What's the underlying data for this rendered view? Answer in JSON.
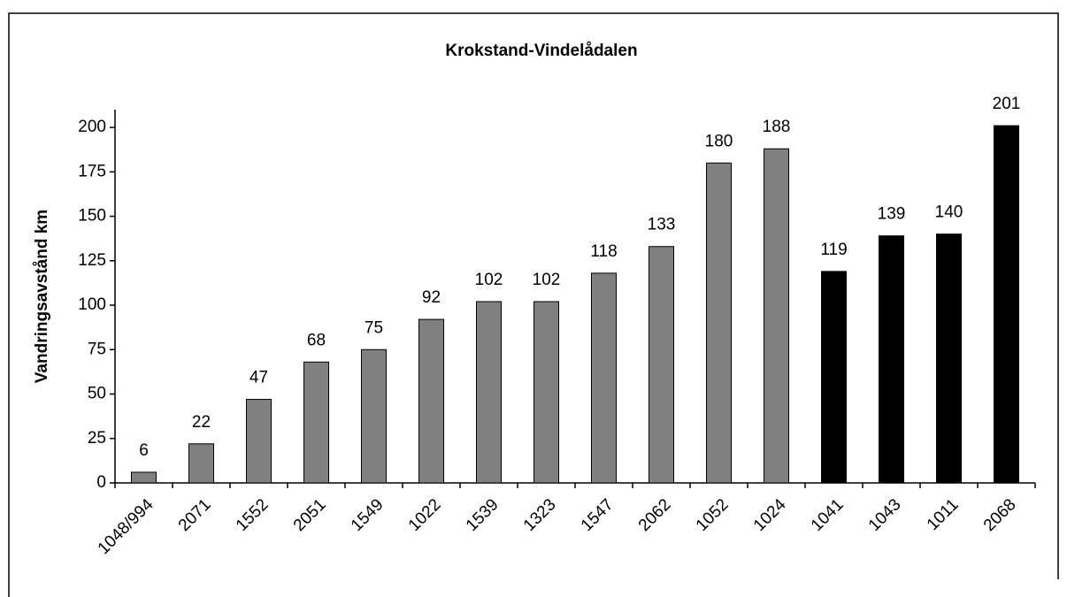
{
  "chart_data": {
    "type": "bar",
    "title": "Krokstand-Vindelådalen",
    "y_label": "Vandringsavstånd km",
    "categories": [
      "1048/994",
      "2071",
      "1552",
      "2051",
      "1549",
      "1022",
      "1539",
      "1323",
      "1547",
      "2062",
      "1052",
      "1024",
      "1041",
      "1043",
      "1011",
      "2068"
    ],
    "values": [
      6,
      22,
      47,
      68,
      75,
      92,
      102,
      102,
      118,
      133,
      180,
      188,
      119,
      139,
      140,
      201
    ],
    "colors": [
      "#808080",
      "#808080",
      "#808080",
      "#808080",
      "#808080",
      "#808080",
      "#808080",
      "#808080",
      "#808080",
      "#808080",
      "#808080",
      "#808080",
      "#000000",
      "#000000",
      "#000000",
      "#000000"
    ],
    "ylim": [
      0,
      210
    ],
    "yticks": [
      0,
      25,
      50,
      75,
      100,
      125,
      150,
      175,
      200
    ],
    "grid": false
  }
}
